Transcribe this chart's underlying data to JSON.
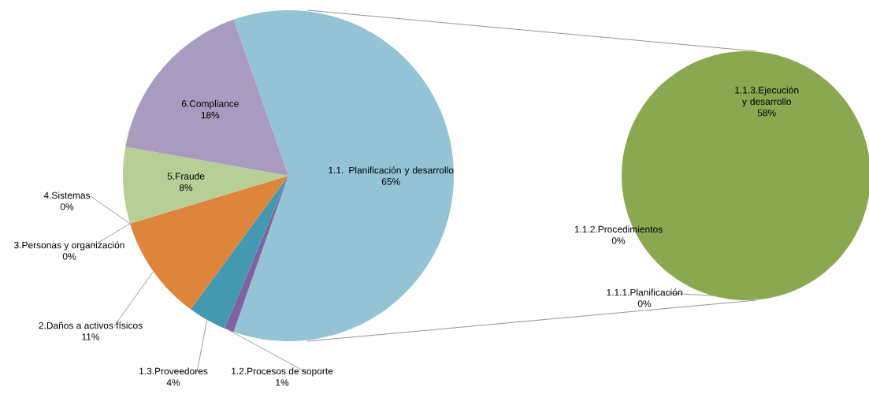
{
  "chart_data": [
    {
      "type": "pie",
      "categories": [
        "1.1. Planificación y desarrollo",
        "1.2.Procesos de soporte",
        "1.3.Proveedores",
        "2.Daños a activos físicos",
        "3.Personas y organización",
        "4.Sistemas",
        "5.Fraude",
        "6.Compliance"
      ],
      "values": [
        65,
        1,
        4,
        11,
        0,
        0,
        8,
        18
      ],
      "value_labels": [
        "65%",
        "1%",
        "4%",
        "11%",
        "0%",
        "0%",
        "8%",
        "18%"
      ],
      "colors": [
        "#93c3d5",
        "#7f63a0",
        "#4299b0",
        "#dd853b",
        "#c0504d",
        "#9bbb59",
        "#b7cf96",
        "#a99bbd"
      ]
    },
    {
      "type": "pie",
      "categories": [
        "1.1.1.Planificación",
        "1.1.2.Procedimientos",
        "1.1.3.Ejecución y desarrollo"
      ],
      "values": [
        0,
        0,
        58
      ],
      "value_labels": [
        "0%",
        "0%",
        "58%"
      ],
      "colors": [
        "#4f81bd",
        "#c0504d",
        "#8aa84f"
      ]
    }
  ]
}
